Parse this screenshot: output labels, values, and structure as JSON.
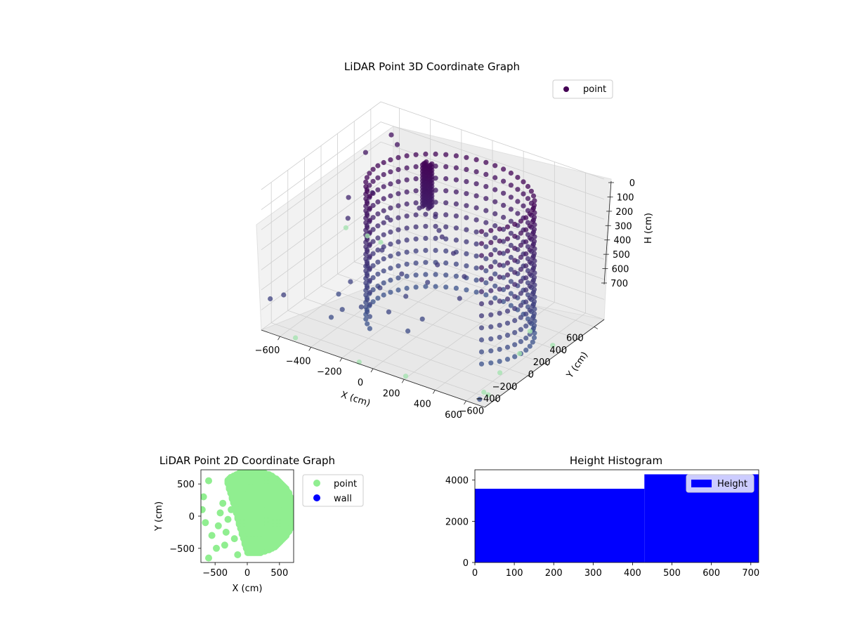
{
  "chart_data": [
    {
      "type": "scatter",
      "projection": "3d",
      "title": "LiDAR Point 3D Coordinate Graph",
      "xlabel": "X (cm)",
      "ylabel": "Y (cm)",
      "zlabel": "H (cm)",
      "xlim": [
        -720,
        720
      ],
      "ylim": [
        -720,
        720
      ],
      "zlim": [
        700,
        0
      ],
      "xticks": [
        -600,
        -400,
        -200,
        0,
        200,
        400,
        600
      ],
      "yticks": [
        -600,
        -400,
        -200,
        0,
        200,
        400,
        600
      ],
      "zticks": [
        0,
        100,
        200,
        300,
        400,
        500,
        600,
        700
      ],
      "zaxis_inverted": true,
      "grid": true,
      "legend": {
        "entries": [
          "point"
        ],
        "placement": "upper right"
      },
      "colormap": "viridis",
      "colors": {
        "low": "#440154",
        "mid": "#3b528b",
        "high": "#5ec962",
        "pale": "#a5e2b0"
      },
      "series": [
        {
          "name": "point",
          "description_of_points": "ring of points along a cylinder of radius ~480 cm centred near (80, 60), spanning heights 30–700 cm, plus a dense vertical column near (-200, 300) and scattered clutter",
          "ring": {
            "center": [
              80,
              60
            ],
            "radius": 480,
            "angle_from_deg": -40,
            "angle_to_deg": 230,
            "heights": [
              40,
              100,
              160,
              220,
              280,
              340,
              400,
              460,
              520,
              580,
              640,
              700
            ]
          },
          "clutter": [
            [
              -700,
              -650,
              560
            ],
            [
              -640,
              -600,
              540
            ],
            [
              -620,
              660,
              120
            ],
            [
              -700,
              500,
              180
            ],
            [
              -560,
              620,
              140
            ],
            [
              -500,
              -200,
              620
            ],
            [
              -450,
              -150,
              560
            ],
            [
              -420,
              0,
              520
            ],
            [
              -380,
              100,
              460
            ],
            [
              -300,
              -300,
              600
            ],
            [
              -260,
              -150,
              540
            ],
            [
              -200,
              0,
              500
            ],
            [
              -150,
              -250,
              600
            ],
            [
              -120,
              -100,
              560
            ],
            [
              -60,
              50,
              520
            ],
            [
              0,
              -300,
              640
            ],
            [
              40,
              -200,
              600
            ],
            [
              -300,
              400,
              320
            ],
            [
              -250,
              500,
              380
            ],
            [
              -200,
              450,
              420
            ],
            [
              -650,
              200,
              300
            ],
            [
              -600,
              100,
              360
            ],
            [
              -550,
              300,
              280
            ],
            [
              -480,
              350,
              400
            ],
            [
              -430,
              -420,
              650
            ],
            [
              -380,
              -380,
              610
            ],
            [
              -100,
              300,
              380
            ],
            [
              0,
              250,
              420
            ],
            [
              150,
              100,
              450
            ],
            [
              200,
              -50,
              500
            ],
            [
              -50,
              150,
              460
            ],
            [
              650,
              -650,
              700
            ]
          ]
        }
      ]
    },
    {
      "type": "scatter",
      "title": "LiDAR Point 2D Coordinate Graph",
      "xlabel": "X (cm)",
      "ylabel": "Y (cm)",
      "xlim": [
        -720,
        720
      ],
      "ylim": [
        -720,
        720
      ],
      "xticks": [
        -500,
        0,
        500
      ],
      "yticks": [
        -500,
        0,
        500
      ],
      "legend": {
        "entries": [
          "point",
          "wall"
        ],
        "placement": "outside right"
      },
      "series": [
        {
          "name": "point",
          "color": "#90ee90",
          "region": "ring center (80, 60) radius 480, fill of inner band plus scattered clusters on left",
          "clusters": [
            [
              -700,
              100
            ],
            [
              -650,
              -100
            ],
            [
              -680,
              300
            ],
            [
              -600,
              550
            ],
            [
              -550,
              -300
            ],
            [
              -450,
              -150
            ],
            [
              -420,
              50
            ],
            [
              -380,
              200
            ],
            [
              -330,
              -250
            ],
            [
              -300,
              -50
            ],
            [
              -250,
              100
            ],
            [
              -200,
              -350
            ],
            [
              -150,
              -600
            ],
            [
              -120,
              200
            ],
            [
              -600,
              -650
            ],
            [
              -480,
              -500
            ],
            [
              -350,
              -450
            ],
            [
              -250,
              600
            ]
          ]
        },
        {
          "name": "wall",
          "color": "#0000ff"
        }
      ]
    },
    {
      "type": "bar",
      "title": "Height Histogram",
      "xlim": [
        0,
        720
      ],
      "ylim": [
        0,
        4500
      ],
      "xticks": [
        0,
        100,
        200,
        300,
        400,
        500,
        600,
        700
      ],
      "yticks": [
        0,
        2000,
        4000
      ],
      "legend": {
        "entries": [
          "Height"
        ],
        "placement": "upper right"
      },
      "series": [
        {
          "name": "Height",
          "color": "#0000ff",
          "bins": [
            {
              "x0": 0,
              "x1": 430,
              "value": 3580
            },
            {
              "x0": 430,
              "x1": 720,
              "value": 4280
            }
          ]
        }
      ]
    }
  ]
}
